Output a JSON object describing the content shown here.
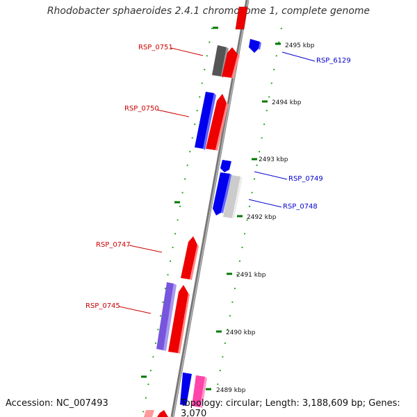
{
  "title": "Rhodobacter sphaeroides 2.4.1 chromosome 1, complete genome",
  "footer": {
    "accession": "Accession: NC_007493",
    "summary": "Topology: circular; Length: 3,188,609 bp; Genes: 3,070"
  },
  "colors": {
    "forward_strand": "#ff0000",
    "reverse_strand": "#0000ff",
    "backbone": "#888888",
    "tick": "#007700",
    "dots": "#22aa22",
    "forward_label": "#cc0000",
    "reverse_label": "#0000cc"
  },
  "scale_labels": [
    "2495 kbp",
    "2494 kbp",
    "2493 kbp",
    "2492 kbp",
    "2491 kbp",
    "2490 kbp",
    "2489 kbp"
  ],
  "gene_labels": {
    "forward": [
      "RSP_0751",
      "RSP_0750",
      "RSP_0747",
      "RSP_0745"
    ],
    "reverse": [
      "RSP_6129",
      "RSP_0749",
      "RSP_0748"
    ]
  },
  "genes": [
    {
      "strand": "forward",
      "color": "#ff0000",
      "icon": "gene-arrow"
    },
    {
      "strand": "reverse",
      "color": "#0000ff",
      "icon": "gene-arrow"
    }
  ]
}
